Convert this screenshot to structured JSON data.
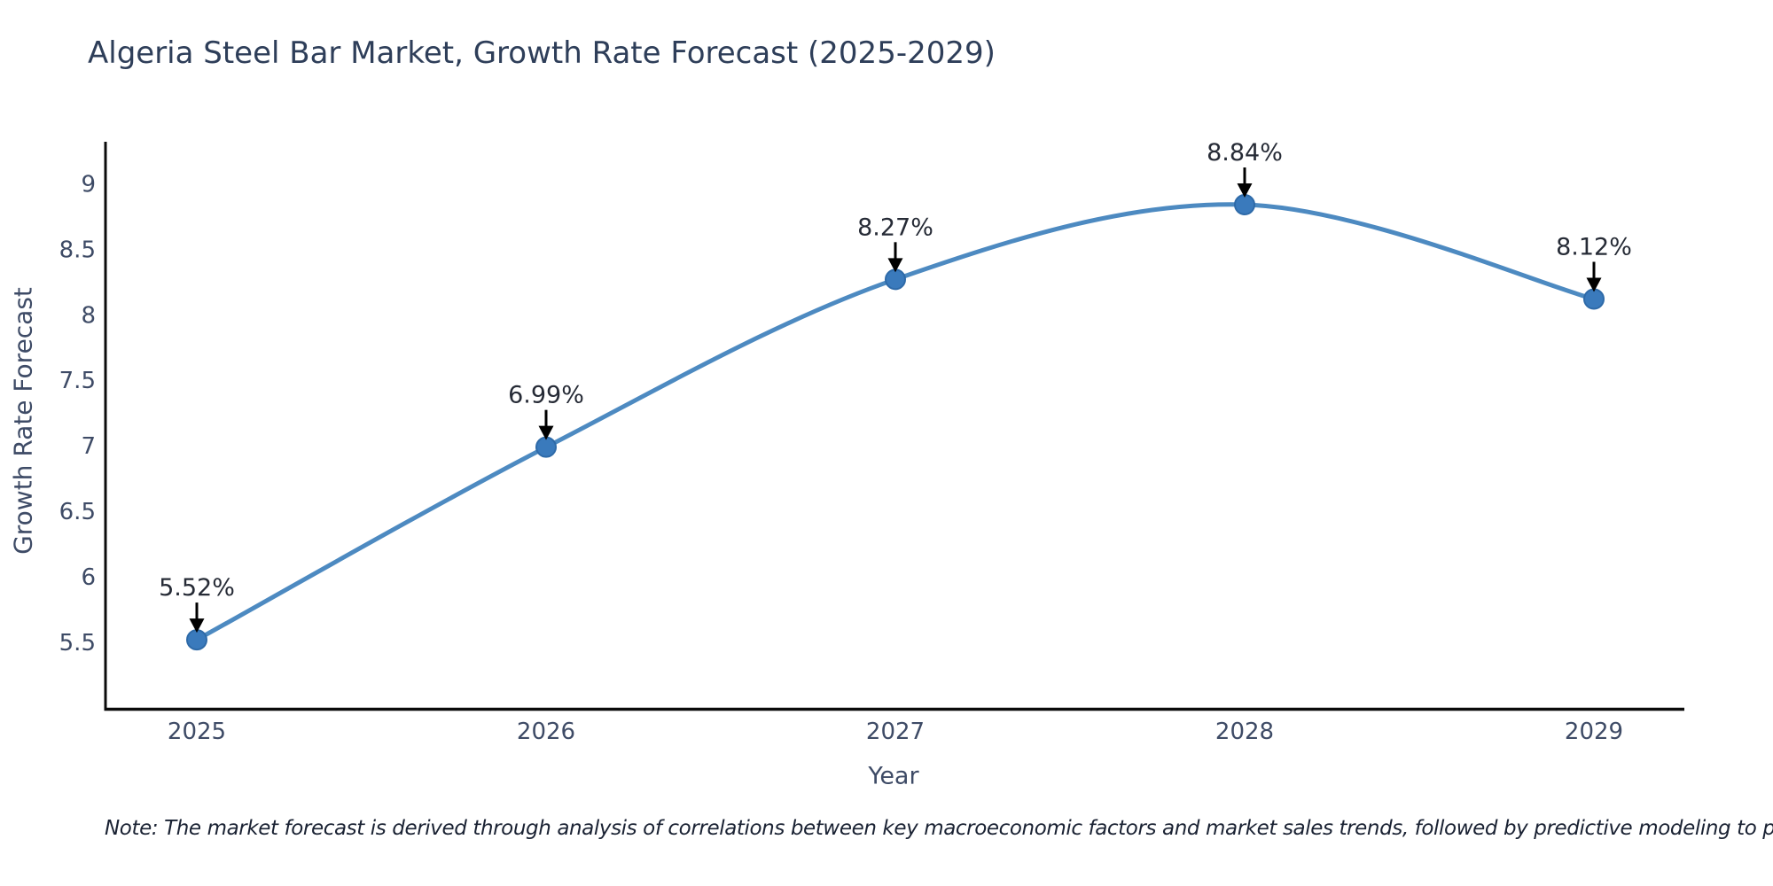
{
  "title": "Algeria Steel Bar Market, Growth Rate Forecast (2025-2029)",
  "note": "Note: The market forecast is derived through analysis of correlations between key macroeconomic factors and market sales trends, followed by predictive modeling to project future sales",
  "chart_data": {
    "type": "line",
    "title": "Algeria Steel Bar Market, Growth Rate Forecast (2025-2029)",
    "xlabel": "Year",
    "ylabel": "Growth Rate Forecast",
    "categories": [
      "2025",
      "2026",
      "2027",
      "2028",
      "2029"
    ],
    "series": [
      {
        "name": "Growth Rate Forecast",
        "values": [
          5.52,
          6.99,
          8.27,
          8.84,
          8.12
        ]
      }
    ],
    "point_labels": [
      "5.52%",
      "6.99%",
      "8.27%",
      "8.84%",
      "8.12%"
    ],
    "y_tick_labels": [
      "5.5",
      "6",
      "6.5",
      "7",
      "7.5",
      "8",
      "8.5",
      "9"
    ],
    "ylim": [
      4.99,
      9.32
    ],
    "grid": false,
    "legend": false,
    "line_smoothing": "spline",
    "annotations_have_arrows": true,
    "colors": {
      "line": "#4d8ac1",
      "marker_fill": "#3a7abc",
      "marker_edge": "#2e6aa8",
      "arrow": "#000000",
      "axis_line": "#0b0b0b",
      "title_text": "#2e3e59",
      "tick_text": "#3e4b66",
      "annotation_text": "#262b36",
      "note_text": "#1a2233",
      "background": "#ffffff"
    }
  }
}
